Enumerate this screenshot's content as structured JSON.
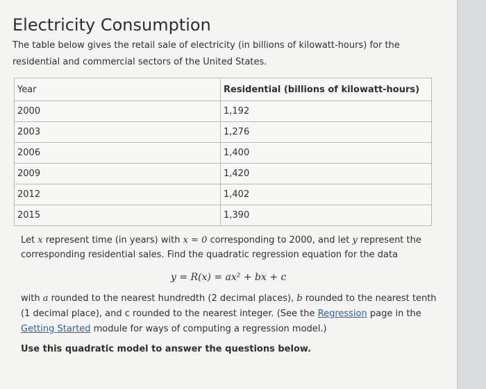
{
  "page": {
    "title": "Electricity Consumption",
    "intro": "The table below gives the retail sale of electricity (in billions of kilowatt-hours) for the residential and commercial sectors of the United States."
  },
  "table": {
    "headers": [
      "Year",
      "Residential (billions of kilowatt-hours)"
    ],
    "rows": [
      {
        "year": "2000",
        "value": "1,192"
      },
      {
        "year": "2003",
        "value": "1,276"
      },
      {
        "year": "2006",
        "value": "1,400"
      },
      {
        "year": "2009",
        "value": "1,420"
      },
      {
        "year": "2012",
        "value": "1,402"
      },
      {
        "year": "2015",
        "value": "1,390"
      }
    ]
  },
  "instructions": {
    "p1_a": "Let ",
    "p1_x": "x",
    "p1_b": " represent time (in years) with ",
    "p1_eq0": "x = 0",
    "p1_c": " corresponding to 2000, and let ",
    "p1_y": "y",
    "p1_d": " represent the corresponding residential sales.  Find the quadratic regression equation for the data",
    "equation": "y = R(x) = ax² + bx + c",
    "p2_a": "with ",
    "p2_avar": "a",
    "p2_b": " rounded to the nearest hundredth (2 decimal places), ",
    "p2_bvar": "b",
    "p2_c": " rounded to the nearest tenth (1 decimal place), and c rounded to the nearest integer. (See the ",
    "link_regression": "Regression",
    "p2_d": " page in the ",
    "link_getting_started": "Getting Started",
    "p2_e": " module for ways of computing a regression model.)",
    "closing": "Use this quadratic model to answer the questions below."
  }
}
